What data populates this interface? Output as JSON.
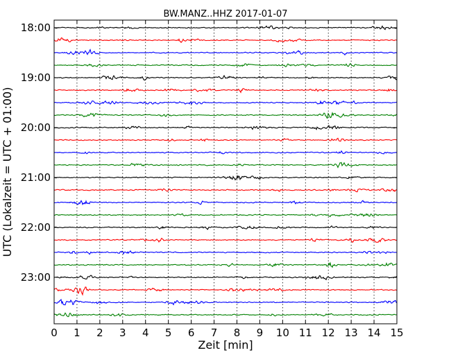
{
  "chart_data": {
    "type": "line",
    "title": "BW.MANZ..HHZ 2017-01-07",
    "xlabel": "Zeit  [min]",
    "ylabel": "UTC (Lokalzeit = UTC + 01:00)",
    "xlim": [
      0,
      15
    ],
    "x_ticks": [
      0,
      1,
      2,
      3,
      4,
      5,
      6,
      7,
      8,
      9,
      10,
      11,
      12,
      13,
      14,
      15
    ],
    "y_tick_labels": [
      "18:00",
      "19:00",
      "20:00",
      "21:00",
      "22:00",
      "23:00"
    ],
    "grid": "vertical dotted",
    "series_colors": [
      "#000000",
      "#ff0000",
      "#0000ff",
      "#008000"
    ],
    "traces": [
      "18:00",
      "18:15",
      "18:30",
      "18:45",
      "19:00",
      "19:15",
      "19:30",
      "19:45",
      "20:00",
      "20:15",
      "20:30",
      "20:45",
      "21:00",
      "21:15",
      "21:30",
      "21:45",
      "22:00",
      "22:15",
      "22:30",
      "22:45",
      "23:00",
      "23:15",
      "23:30",
      "23:45"
    ]
  }
}
